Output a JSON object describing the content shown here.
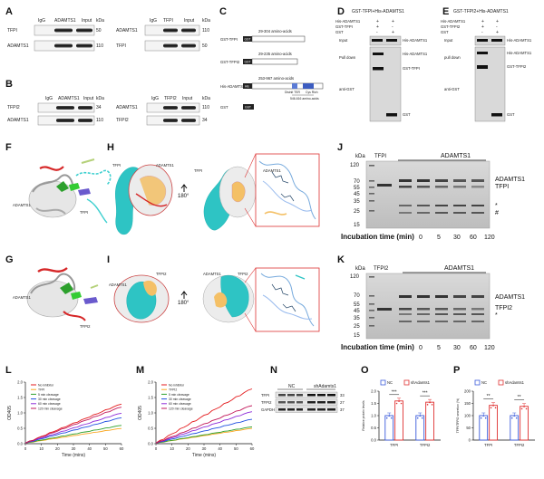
{
  "panels": {
    "A": {
      "label": "A",
      "left": {
        "cols": [
          "IgG",
          "ADAMTS1",
          "Input"
        ],
        "rows": [
          "TFPI",
          "ADAMTS1"
        ],
        "kda": [
          "50",
          "110"
        ]
      },
      "right": {
        "cols": [
          "IgG",
          "TFPI",
          "Input"
        ],
        "rows": [
          "ADAMTS1",
          "TFPI"
        ],
        "kda": [
          "110",
          "50"
        ]
      },
      "kda_label": "kDa"
    },
    "B": {
      "label": "B",
      "left": {
        "cols": [
          "IgG",
          "ADAMTS1",
          "Input"
        ],
        "rows": [
          "TFPI2",
          "ADAMTS1"
        ],
        "kda": [
          "34",
          "110"
        ]
      },
      "right": {
        "cols": [
          "IgG",
          "TFPI2",
          "Input"
        ],
        "rows": [
          "ADAMTS1",
          "TFPI2"
        ],
        "kda": [
          "110",
          "34"
        ]
      },
      "kda_label": "kDa"
    },
    "C": {
      "label": "C",
      "constructs": [
        {
          "name": "GST-TFPI",
          "tag": "GST",
          "range": "29-304 amino-acids"
        },
        {
          "name": "GST-TFPI2",
          "tag": "GST",
          "range": "29-235 amino-acids"
        },
        {
          "name": "His-ADAMTS1",
          "tag": "His",
          "range": "253-967 amino-acids",
          "domains": [
            "Disinit TSR",
            "Cys Rich"
          ],
          "sub": "546-616 amino-acids"
        },
        {
          "name": "GST",
          "tag": "GST",
          "range": ""
        }
      ]
    },
    "D": {
      "label": "D",
      "title": "GST-TFPI+His-ADAMTS1",
      "conditions": [
        "His-ADAMTS1",
        "GST-TFPI",
        "GST"
      ],
      "signs": [
        [
          "+",
          "+"
        ],
        [
          "+",
          "-"
        ],
        [
          "-",
          "+"
        ]
      ],
      "left_labels": [
        "Input",
        "Pull down",
        "anti-GST"
      ],
      "right_labels": [
        "His-ADAMTS1",
        "His-ADAMTS1",
        "GST-TFPI",
        "GST"
      ]
    },
    "E": {
      "label": "E",
      "title": "GST-TFPI2+His-ADAMTS1",
      "conditions": [
        "His-ADAMTS1",
        "GST-TFPI2",
        "GST"
      ],
      "signs": [
        [
          "+",
          "+"
        ],
        [
          "+",
          "-"
        ],
        [
          "-",
          "+"
        ]
      ],
      "left_labels": [
        "Input",
        "pull down",
        "anti-GST"
      ],
      "right_labels": [
        "His-ADAMTS1",
        "His-ADAMTS1",
        "GST-TFPI2",
        "GST"
      ]
    },
    "F": {
      "label": "F",
      "labels": [
        "ADAMTS1",
        "TFPI"
      ]
    },
    "G": {
      "label": "G",
      "labels": [
        "ADAMTS1",
        "TFPI2"
      ]
    },
    "H": {
      "label": "H",
      "rotation": "180°",
      "labels": [
        "TFPI",
        "ADAMTS1",
        "TFPI",
        "ADAMTS1"
      ]
    },
    "I": {
      "label": "I",
      "rotation": "180°",
      "labels": [
        "ADAMTS1",
        "TFPI2",
        "ADAMTS1",
        "TFPI2"
      ]
    },
    "J": {
      "label": "J",
      "kda_label": "kDa",
      "ladder": [
        "120",
        "70",
        "55",
        "45",
        "35",
        "25",
        "15"
      ],
      "lane_groups": [
        "TFPI",
        "ADAMTS1"
      ],
      "bands": [
        "ADAMTS1",
        "TFPI",
        "*",
        "#"
      ],
      "time_label": "Incubation time (min)",
      "times": [
        "0",
        "5",
        "30",
        "60",
        "120"
      ]
    },
    "K": {
      "label": "K",
      "kda_label": "kDa",
      "ladder": [
        "120",
        "70",
        "55",
        "45",
        "35",
        "25",
        "15"
      ],
      "lane_groups": [
        "TFPI2",
        "ADAMTS1"
      ],
      "bands": [
        "ADAMTS1",
        "TFPI2",
        "*"
      ],
      "time_label": "Incubation time (min)",
      "times": [
        "0",
        "5",
        "30",
        "60",
        "120"
      ]
    },
    "N": {
      "label": "N",
      "groups": [
        "NC",
        "shAdamts1"
      ],
      "rows": [
        "TFPI",
        "TFPI2",
        "GAPDH"
      ],
      "kda": [
        "33",
        "27",
        "37"
      ]
    }
  },
  "chart_data": [
    {
      "panel": "L",
      "type": "line",
      "xlabel": "Time (mins)",
      "ylabel": "OD405",
      "xlim": [
        0,
        60
      ],
      "ylim": [
        0,
        2.0
      ],
      "xticks": [
        "0",
        "10",
        "20",
        "30",
        "40",
        "50",
        "60"
      ],
      "yticks": [
        "0.0",
        "0.5",
        "1.0",
        "1.5",
        "2.0"
      ],
      "x": [
        0,
        60
      ],
      "series": [
        {
          "name": "No inhibitor",
          "color": "#e41a1c",
          "values": [
            0.02,
            1.3
          ]
        },
        {
          "name": "TFPI",
          "color": "#f9a825",
          "values": [
            0.02,
            0.5
          ]
        },
        {
          "name": "5 min cleavage",
          "color": "#2ca02c",
          "values": [
            0.02,
            0.6
          ]
        },
        {
          "name": "30 min cleavage",
          "color": "#1f4fe0",
          "values": [
            0.02,
            0.85
          ]
        },
        {
          "name": "60 min cleavage",
          "color": "#8e2bd8",
          "values": [
            0.02,
            1.0
          ]
        },
        {
          "name": "120 min cleavage",
          "color": "#c2185b",
          "values": [
            0.02,
            1.2
          ]
        }
      ]
    },
    {
      "panel": "M",
      "type": "line",
      "xlabel": "Time (mins)",
      "ylabel": "OD405",
      "xlim": [
        0,
        60
      ],
      "ylim": [
        0,
        2.0
      ],
      "xticks": [
        "0",
        "10",
        "20",
        "30",
        "40",
        "50",
        "60"
      ],
      "yticks": [
        "0.0",
        "0.5",
        "1.0",
        "1.5",
        "2.0"
      ],
      "x": [
        0,
        60
      ],
      "series": [
        {
          "name": "No inhibitor",
          "color": "#e41a1c",
          "values": [
            0.02,
            1.8
          ]
        },
        {
          "name": "TFPI2",
          "color": "#f9a825",
          "values": [
            0.02,
            0.5
          ]
        },
        {
          "name": "5 min cleavage",
          "color": "#2ca02c",
          "values": [
            0.02,
            0.55
          ]
        },
        {
          "name": "30 min cleavage",
          "color": "#1f4fe0",
          "values": [
            0.02,
            0.8
          ]
        },
        {
          "name": "60 min cleavage",
          "color": "#8e2bd8",
          "values": [
            0.02,
            1.05
          ]
        },
        {
          "name": "120 min cleavage",
          "color": "#c2185b",
          "values": [
            0.02,
            1.25
          ]
        }
      ]
    },
    {
      "panel": "O",
      "type": "bar",
      "ylabel": "Relative protein levels",
      "categories": [
        "TFPI",
        "TFPI2"
      ],
      "ylim": [
        0,
        2.0
      ],
      "yticks": [
        "0.0",
        "0.5",
        "1.0",
        "1.5",
        "2.0"
      ],
      "series": [
        {
          "name": "NC",
          "color": "#3b5bdb",
          "values": [
            1.0,
            1.0
          ]
        },
        {
          "name": "shAdamts1",
          "color": "#e03131",
          "values": [
            1.6,
            1.55
          ]
        }
      ],
      "significance": [
        "***",
        "***"
      ]
    },
    {
      "panel": "P",
      "type": "bar",
      "ylabel": "TFPI/TFPI2 secretion (%)",
      "categories": [
        "TFPI",
        "TFPI2"
      ],
      "ylim": [
        0,
        200
      ],
      "yticks": [
        "0",
        "50",
        "100",
        "150",
        "200"
      ],
      "series": [
        {
          "name": "NC",
          "color": "#3b5bdb",
          "values": [
            100,
            100
          ]
        },
        {
          "name": "shAdamts1",
          "color": "#e03131",
          "values": [
            142,
            138
          ]
        }
      ],
      "significance": [
        "**",
        "**"
      ]
    }
  ]
}
